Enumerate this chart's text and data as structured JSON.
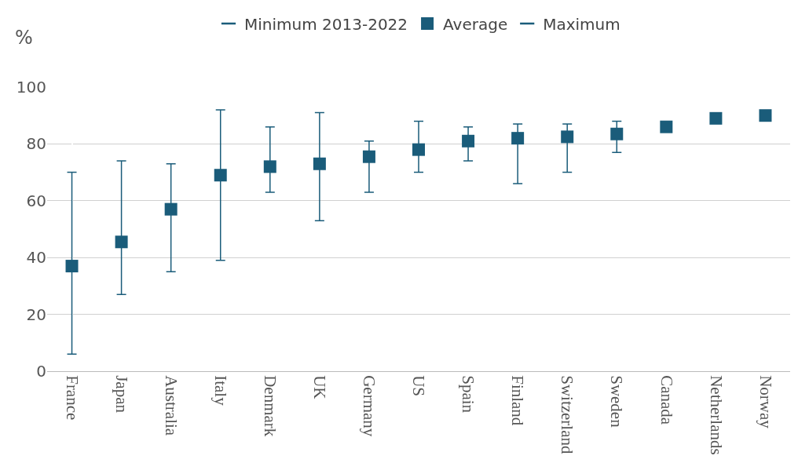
{
  "chart_data": {
    "type": "scatter",
    "ylabel": "%",
    "categories": [
      "France",
      "Japan",
      "Australia",
      "Italy",
      "Denmark",
      "UK",
      "Germany",
      "US",
      "Spain",
      "Finland",
      "Switzerland",
      "Sweden",
      "Canada",
      "Netherlands",
      "Norway"
    ],
    "series": [
      {
        "name": "Minimum 2013-2022",
        "color": "#1a5c7a",
        "values": [
          null,
          null,
          null,
          null,
          null,
          null,
          null,
          null,
          null,
          null,
          null,
          null,
          null,
          null,
          null
        ]
      },
      {
        "name": "Average",
        "color": "#1a5c7a",
        "marker": "square",
        "values": [
          37,
          45.5,
          57,
          69,
          72,
          73,
          75.5,
          78,
          81,
          82,
          82.5,
          83.5,
          86,
          89,
          90
        ],
        "errors": [
          [
            6,
            70
          ],
          [
            27,
            74
          ],
          [
            35,
            73
          ],
          [
            39,
            92
          ],
          [
            63,
            86
          ],
          [
            53,
            91
          ],
          [
            63,
            81
          ],
          [
            70,
            88
          ],
          [
            74,
            86
          ],
          [
            66,
            87
          ],
          [
            70,
            87
          ],
          [
            77,
            88
          ],
          [
            86,
            87.5
          ],
          null,
          null
        ]
      },
      {
        "name": "Maximum",
        "color": "#1a5c7a",
        "values": [
          null,
          null,
          null,
          null,
          null,
          null,
          null,
          null,
          null,
          null,
          null,
          null,
          null,
          null,
          null
        ]
      }
    ],
    "ylim": [
      0,
      100
    ],
    "yticks": [
      0,
      20,
      40,
      60,
      80,
      100
    ],
    "grid": "y",
    "legend": "top"
  }
}
